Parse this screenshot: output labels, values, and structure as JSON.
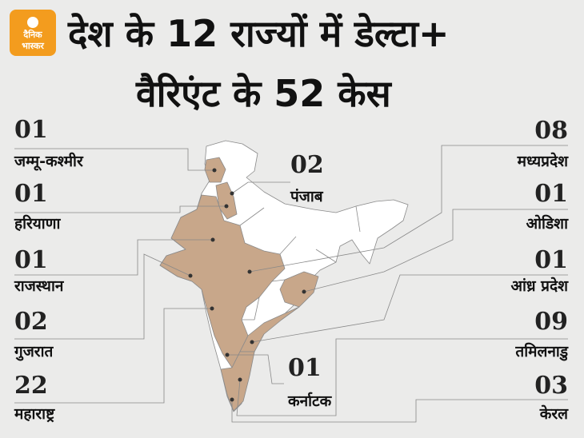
{
  "header": {
    "logo": [
      "दैनिक",
      "भास्कर"
    ],
    "title": [
      "देश के 12 राज्यों में डेल्टा+",
      "वैरिएंट के 52 केस"
    ]
  },
  "states": [
    {
      "count": "01",
      "name": "जम्मू-कश्मीर"
    },
    {
      "count": "01",
      "name": "हरियाणा"
    },
    {
      "count": "01",
      "name": "राजस्थान"
    },
    {
      "count": "02",
      "name": "गुजरात"
    },
    {
      "count": "22",
      "name": "महाराष्ट्र"
    },
    {
      "count": "08",
      "name": "मध्यप्रदेश"
    },
    {
      "count": "01",
      "name": "ओडिशा"
    },
    {
      "count": "01",
      "name": "आंध्र प्रदेश"
    },
    {
      "count": "09",
      "name": "तमिलनाडु"
    },
    {
      "count": "03",
      "name": "केरल"
    },
    {
      "count": "02",
      "name": "पंजाब"
    },
    {
      "count": "01",
      "name": "कर्नाटक"
    }
  ]
}
